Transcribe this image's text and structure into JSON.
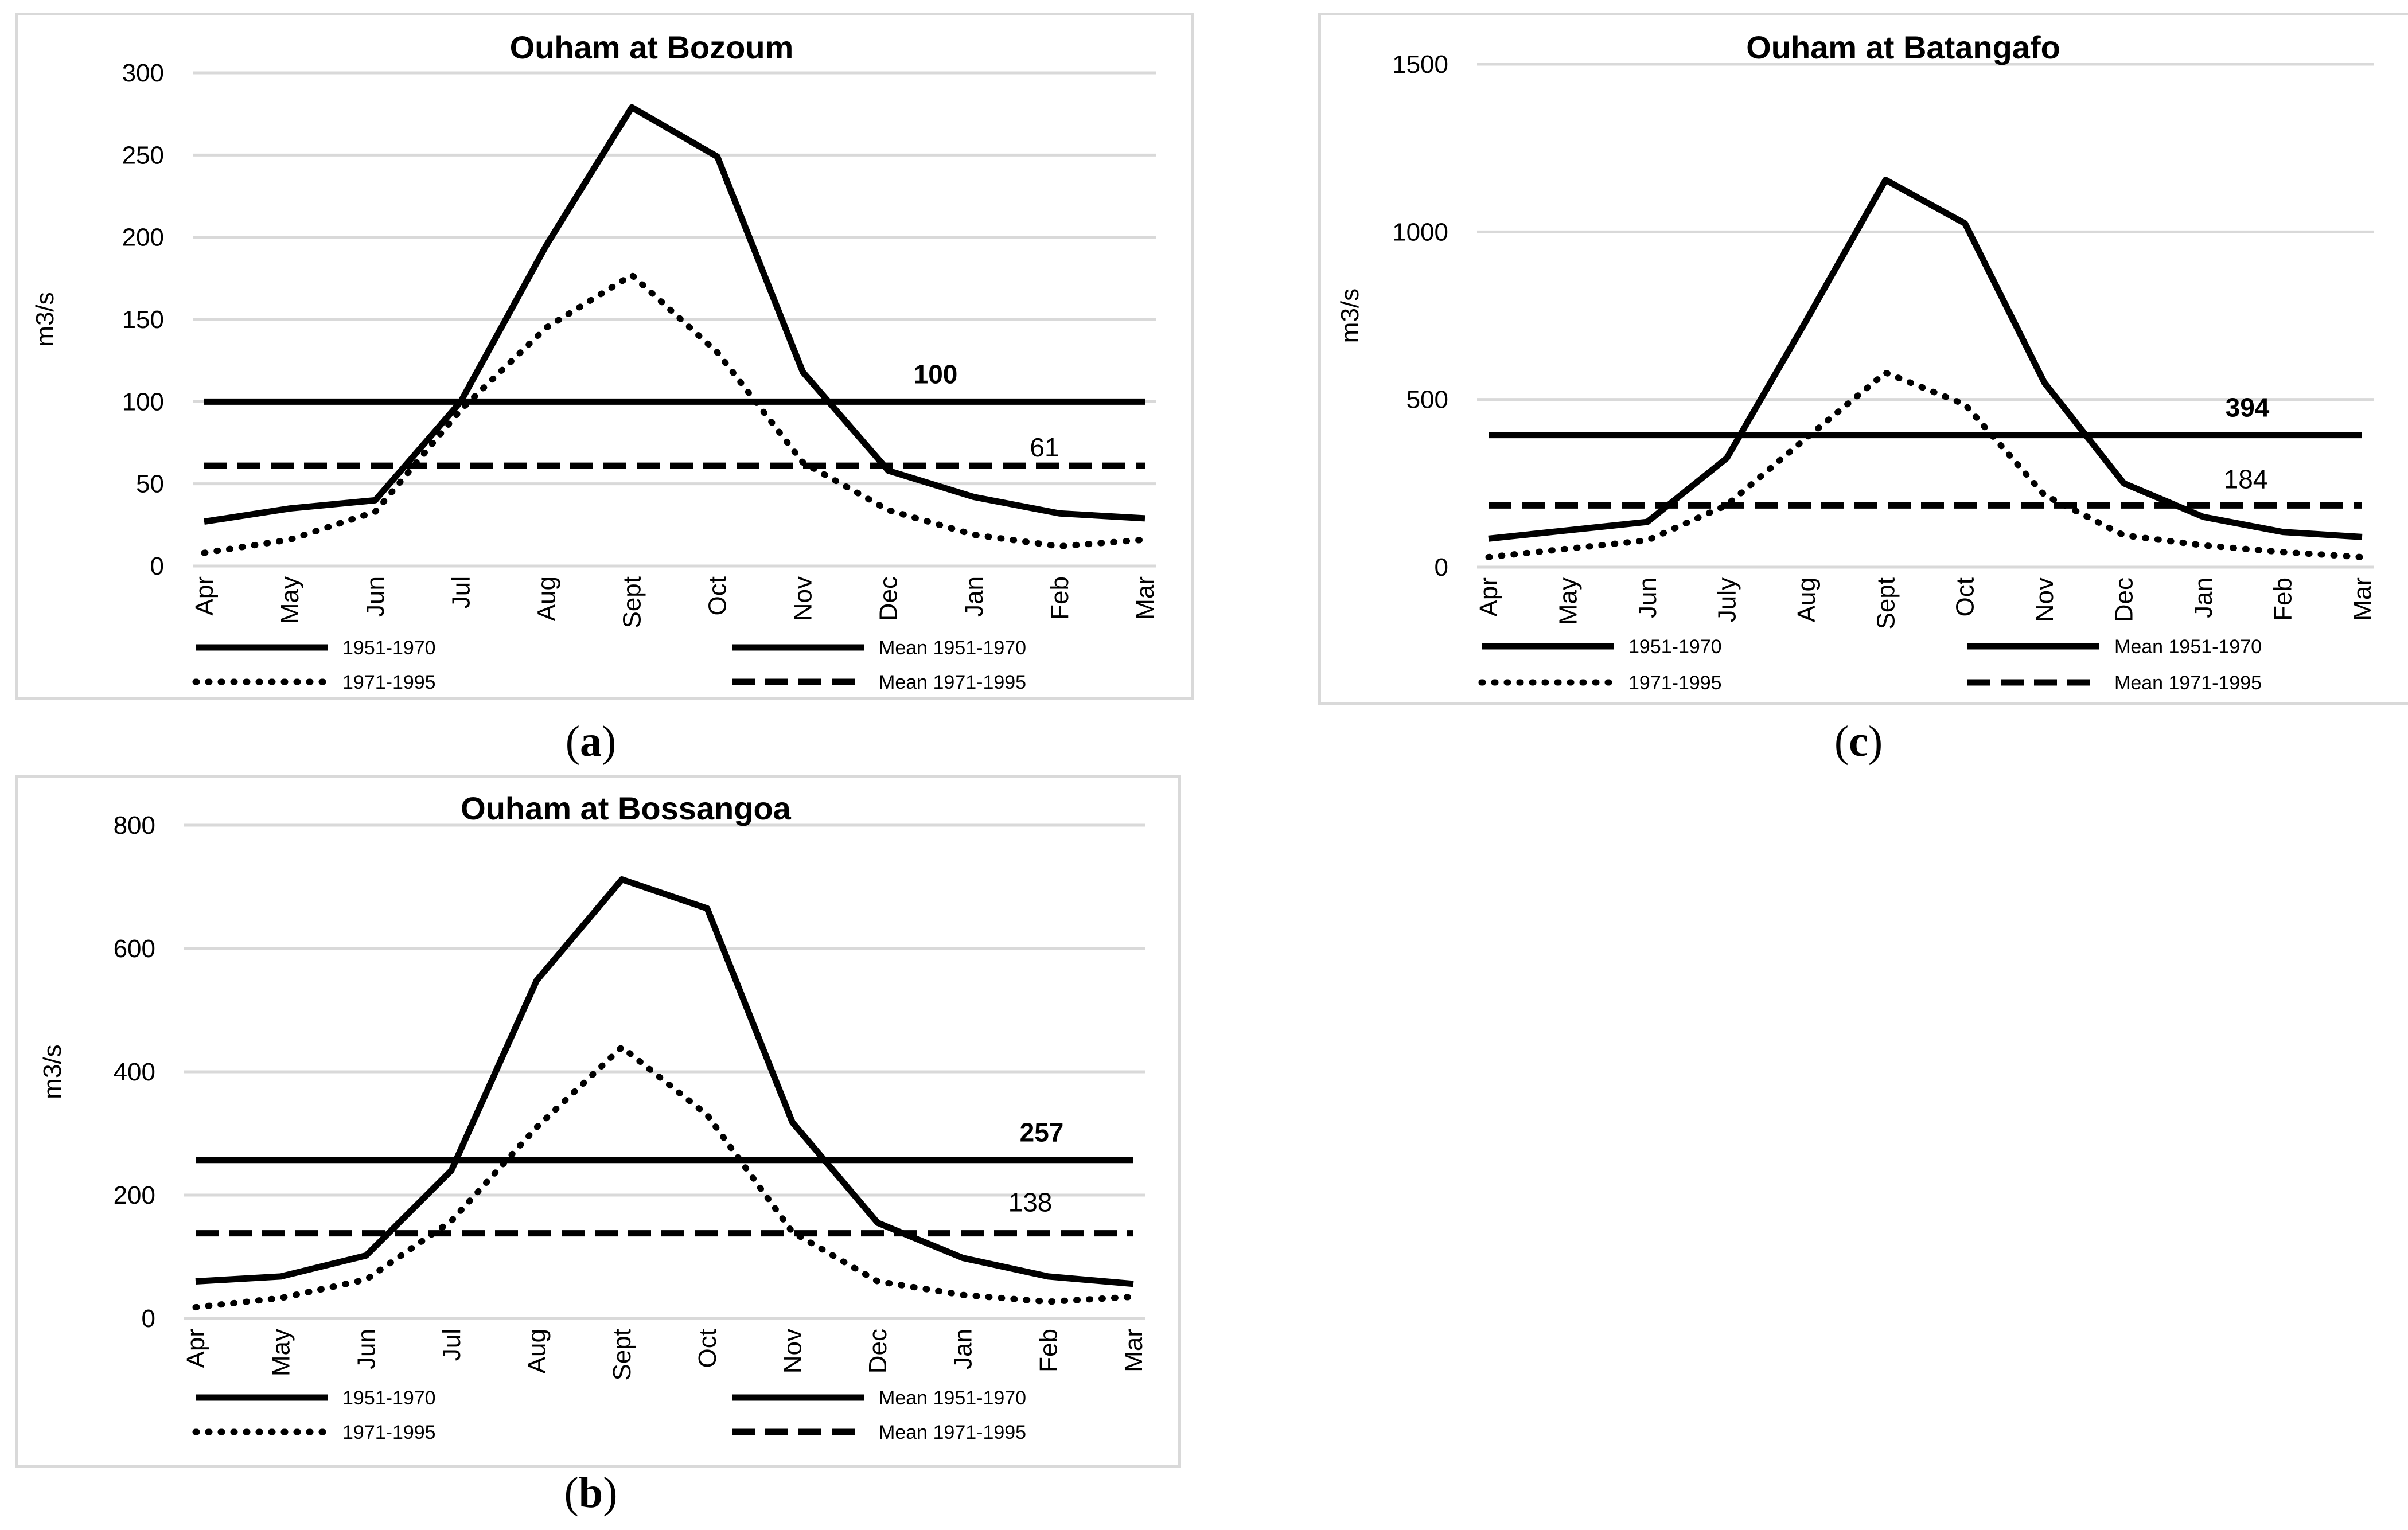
{
  "captions": {
    "a": "a",
    "b": "b",
    "c": "c"
  },
  "chart_data": [
    {
      "id": "a",
      "type": "line",
      "title": "Ouham at Bozoum",
      "ylabel": "m3/s",
      "xlabel": "",
      "ylim": [
        0,
        300
      ],
      "yticks": [
        0,
        50,
        100,
        150,
        200,
        250,
        300
      ],
      "categories": [
        "Apr",
        "May",
        "Jun",
        "Jul",
        "Aug",
        "Sept",
        "Oct",
        "Nov",
        "Dec",
        "Jan",
        "Feb",
        "Mar"
      ],
      "series": [
        {
          "name": "1951-1970",
          "style": "solid",
          "values": [
            27,
            35,
            40,
            100,
            195,
            279,
            249,
            118,
            58,
            42,
            32,
            29
          ]
        },
        {
          "name": "1971-1995",
          "style": "dotted",
          "values": [
            8,
            16,
            33,
            95,
            145,
            177,
            130,
            63,
            34,
            19,
            12,
            16
          ]
        },
        {
          "name": "Mean 1951-1970",
          "style": "solid",
          "values": [
            100,
            100,
            100,
            100,
            100,
            100,
            100,
            100,
            100,
            100,
            100,
            100
          ]
        },
        {
          "name": "Mean 1971-1995",
          "style": "dashed",
          "values": [
            61,
            61,
            61,
            61,
            61,
            61,
            61,
            61,
            61,
            61,
            61,
            61
          ]
        }
      ],
      "annotations": [
        {
          "text": "100",
          "bold": true,
          "value": 100
        },
        {
          "text": "61",
          "bold": false,
          "value": 61
        }
      ],
      "grid": true,
      "legend": "bottom"
    },
    {
      "id": "b",
      "type": "line",
      "title": "Ouham at Bossangoa",
      "ylabel": "m3/s",
      "xlabel": "",
      "ylim": [
        0,
        800
      ],
      "yticks": [
        0,
        200,
        400,
        600,
        800
      ],
      "categories": [
        "Apr",
        "May",
        "Jun",
        "Jul",
        "Aug",
        "Sept",
        "Oct",
        "Nov",
        "Dec",
        "Jan",
        "Feb",
        "Mar"
      ],
      "series": [
        {
          "name": "1951-1970",
          "style": "solid",
          "values": [
            60,
            68,
            102,
            240,
            548,
            712,
            665,
            318,
            155,
            98,
            68,
            56
          ]
        },
        {
          "name": "1971-1995",
          "style": "dotted",
          "values": [
            18,
            33,
            63,
            158,
            310,
            440,
            330,
            140,
            60,
            38,
            27,
            35
          ]
        },
        {
          "name": "Mean 1951-1970",
          "style": "solid",
          "values": [
            257,
            257,
            257,
            257,
            257,
            257,
            257,
            257,
            257,
            257,
            257,
            257
          ]
        },
        {
          "name": "Mean 1971-1995",
          "style": "dashed",
          "values": [
            138,
            138,
            138,
            138,
            138,
            138,
            138,
            138,
            138,
            138,
            138,
            138
          ]
        }
      ],
      "annotations": [
        {
          "text": "257",
          "bold": true,
          "value": 257
        },
        {
          "text": "138",
          "bold": false,
          "value": 138
        }
      ],
      "grid": true,
      "legend": "bottom"
    },
    {
      "id": "c",
      "type": "line",
      "title": "Ouham at Batangafo",
      "ylabel": "m3/s",
      "xlabel": "",
      "ylim": [
        0,
        1500
      ],
      "yticks": [
        0,
        500,
        1000,
        1500
      ],
      "categories": [
        "Apr",
        "May",
        "Jun",
        "July",
        "Aug",
        "Sept",
        "Oct",
        "Nov",
        "Dec",
        "Jan",
        "Feb",
        "Mar"
      ],
      "series": [
        {
          "name": "1951-1970",
          "style": "solid",
          "values": [
            85,
            110,
            135,
            325,
            735,
            1155,
            1025,
            550,
            250,
            150,
            105,
            90
          ]
        },
        {
          "name": "1971-1995",
          "style": "dotted",
          "values": [
            30,
            55,
            80,
            185,
            385,
            580,
            485,
            215,
            95,
            65,
            45,
            30
          ]
        },
        {
          "name": "Mean 1951-1970",
          "style": "solid",
          "values": [
            394,
            394,
            394,
            394,
            394,
            394,
            394,
            394,
            394,
            394,
            394,
            394
          ]
        },
        {
          "name": "Mean 1971-1995",
          "style": "dashed",
          "values": [
            184,
            184,
            184,
            184,
            184,
            184,
            184,
            184,
            184,
            184,
            184,
            184
          ]
        }
      ],
      "annotations": [
        {
          "text": "394",
          "bold": true,
          "value": 394
        },
        {
          "text": "184",
          "bold": false,
          "value": 184
        }
      ],
      "grid": true,
      "legend": "bottom"
    }
  ]
}
